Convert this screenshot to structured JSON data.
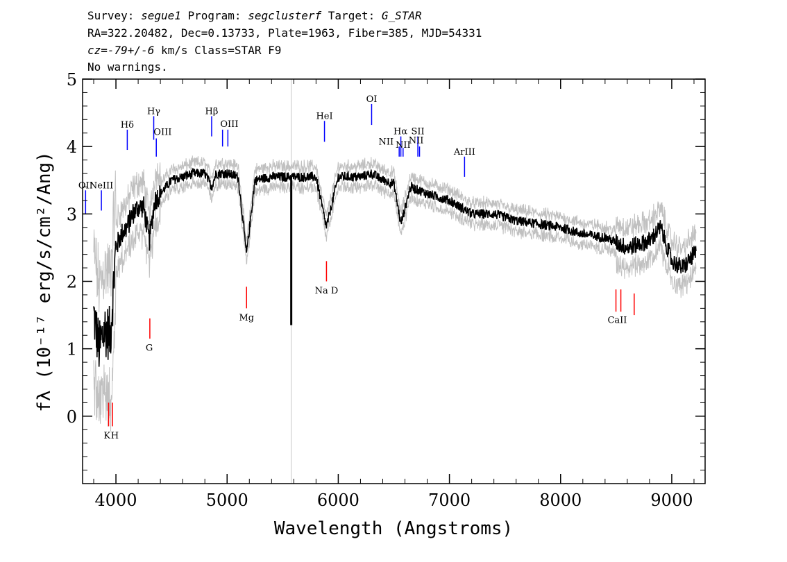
{
  "header": {
    "line1": {
      "prefix1": "Survey: ",
      "survey": "segue1",
      "prefix2": " Program: ",
      "program": "segclusterf",
      "prefix3": " Target: ",
      "target": "G_STAR"
    },
    "line2": "RA=322.20482, Dec=0.13733, Plate=1963, Fiber=385, MJD=54331",
    "line3": {
      "cz": "cz=-79+/-6",
      "rest": " km/s Class=STAR F9"
    },
    "line4": "No warnings."
  },
  "chart_data": {
    "type": "line",
    "xlabel": "Wavelength (Angstroms)",
    "ylabel": "fλ (10⁻¹⁷ erg/s/cm²/Ang)",
    "xlim": [
      3700,
      9300
    ],
    "ylim": [
      -1,
      5
    ],
    "x_ticks": [
      4000,
      5000,
      6000,
      7000,
      8000,
      9000
    ],
    "y_ticks": [
      0,
      1,
      2,
      3,
      4,
      5
    ],
    "x_minor_step": 200,
    "y_minor_step": 0.2,
    "sky_line_x": 5577,
    "flux_color": "#000000",
    "error_color": "#c0c0c0",
    "emission_color": "#0000ff",
    "absorption_color": "#ff0000",
    "continuum": [
      {
        "x": 3800,
        "y": 1.5
      },
      {
        "x": 3850,
        "y": 1.0
      },
      {
        "x": 3900,
        "y": 1.3
      },
      {
        "x": 3950,
        "y": 1.2
      },
      {
        "x": 4000,
        "y": 2.5
      },
      {
        "x": 4050,
        "y": 2.7
      },
      {
        "x": 4100,
        "y": 2.8
      },
      {
        "x": 4150,
        "y": 3.0
      },
      {
        "x": 4200,
        "y": 3.1
      },
      {
        "x": 4250,
        "y": 3.1
      },
      {
        "x": 4300,
        "y": 2.6
      },
      {
        "x": 4350,
        "y": 3.2
      },
      {
        "x": 4400,
        "y": 3.3
      },
      {
        "x": 4500,
        "y": 3.5
      },
      {
        "x": 4600,
        "y": 3.55
      },
      {
        "x": 4700,
        "y": 3.6
      },
      {
        "x": 4800,
        "y": 3.6
      },
      {
        "x": 4861,
        "y": 3.4
      },
      {
        "x": 4900,
        "y": 3.6
      },
      {
        "x": 5000,
        "y": 3.6
      },
      {
        "x": 5100,
        "y": 3.55
      },
      {
        "x": 5175,
        "y": 2.4
      },
      {
        "x": 5250,
        "y": 3.5
      },
      {
        "x": 5400,
        "y": 3.55
      },
      {
        "x": 5600,
        "y": 3.55
      },
      {
        "x": 5800,
        "y": 3.55
      },
      {
        "x": 5893,
        "y": 2.8
      },
      {
        "x": 6000,
        "y": 3.55
      },
      {
        "x": 6200,
        "y": 3.55
      },
      {
        "x": 6300,
        "y": 3.6
      },
      {
        "x": 6400,
        "y": 3.5
      },
      {
        "x": 6500,
        "y": 3.45
      },
      {
        "x": 6563,
        "y": 2.85
      },
      {
        "x": 6650,
        "y": 3.4
      },
      {
        "x": 6800,
        "y": 3.3
      },
      {
        "x": 7000,
        "y": 3.2
      },
      {
        "x": 7200,
        "y": 3.0
      },
      {
        "x": 7400,
        "y": 3.0
      },
      {
        "x": 7600,
        "y": 2.9
      },
      {
        "x": 7800,
        "y": 2.85
      },
      {
        "x": 8000,
        "y": 2.8
      },
      {
        "x": 8200,
        "y": 2.7
      },
      {
        "x": 8400,
        "y": 2.65
      },
      {
        "x": 8600,
        "y": 2.5
      },
      {
        "x": 8800,
        "y": 2.6
      },
      {
        "x": 8900,
        "y": 2.8
      },
      {
        "x": 9000,
        "y": 2.3
      },
      {
        "x": 9100,
        "y": 2.2
      },
      {
        "x": 9200,
        "y": 2.4
      }
    ],
    "emission_lines": [
      {
        "label": "OII",
        "x": 3727,
        "y0": 3.0,
        "y1": 3.35,
        "lx": 3727,
        "ly": 3.38
      },
      {
        "label": "NeIII",
        "x": 3869,
        "y0": 3.05,
        "y1": 3.35,
        "lx": 3869,
        "ly": 3.38
      },
      {
        "label": "Hδ",
        "x": 4102,
        "y0": 3.95,
        "y1": 4.25,
        "lx": 4102,
        "ly": 4.28
      },
      {
        "label": "Hγ",
        "x": 4340,
        "y0": 4.1,
        "y1": 4.45,
        "lx": 4340,
        "ly": 4.48
      },
      {
        "label": "OIII",
        "x": 4363,
        "y0": 3.85,
        "y1": 4.12,
        "lx": 4420,
        "ly": 4.17
      },
      {
        "label": "Hβ",
        "x": 4861,
        "y0": 4.15,
        "y1": 4.45,
        "lx": 4861,
        "ly": 4.48
      },
      {
        "label": "OIII",
        "x": 4959,
        "y0": 4.0,
        "y1": 4.25,
        "lx": 5020,
        "ly": 4.29
      },
      {
        "label": "",
        "x": 5007,
        "y0": 4.0,
        "y1": 4.25,
        "lx": 5007,
        "ly": 4.25
      },
      {
        "label": "HeI",
        "x": 5876,
        "y0": 4.07,
        "y1": 4.38,
        "lx": 5876,
        "ly": 4.41
      },
      {
        "label": "OI",
        "x": 6300,
        "y0": 4.32,
        "y1": 4.63,
        "lx": 6300,
        "ly": 4.66
      },
      {
        "label": "NII",
        "x": 6548,
        "y0": 3.85,
        "y1": 4.0,
        "lx": 6430,
        "ly": 4.03
      },
      {
        "label": "Hα",
        "x": 6563,
        "y0": 3.85,
        "y1": 4.15,
        "lx": 6560,
        "ly": 4.18
      },
      {
        "label": "NII",
        "x": 6583,
        "y0": 3.85,
        "y1": 3.98,
        "lx": 6583,
        "ly": 3.98
      },
      {
        "label": "SII",
        "x": 6716,
        "y0": 3.85,
        "y1": 4.15,
        "lx": 6716,
        "ly": 4.18
      },
      {
        "label": "NII",
        "x": 6731,
        "y0": 3.85,
        "y1": 4.0,
        "lx": 6700,
        "ly": 4.05
      },
      {
        "label": "ArIII",
        "x": 7136,
        "y0": 3.55,
        "y1": 3.85,
        "lx": 7136,
        "ly": 3.88
      }
    ],
    "absorption_lines": [
      {
        "label": "K",
        "x": 3934,
        "y0": -0.15,
        "y1": 0.2,
        "lx": 3920,
        "ly": -0.33
      },
      {
        "label": "H",
        "x": 3969,
        "y0": -0.15,
        "y1": 0.2,
        "lx": 3990,
        "ly": -0.33
      },
      {
        "label": "G",
        "x": 4305,
        "y0": 1.15,
        "y1": 1.45,
        "lx": 4300,
        "ly": 0.97
      },
      {
        "label": "Mg",
        "x": 5175,
        "y0": 1.6,
        "y1": 1.92,
        "lx": 5175,
        "ly": 1.42
      },
      {
        "label": "Na D",
        "x": 5894,
        "y0": 2.0,
        "y1": 2.3,
        "lx": 5894,
        "ly": 1.82
      },
      {
        "label": "CaII",
        "x": 8498,
        "y0": 1.55,
        "y1": 1.88,
        "lx": 8510,
        "ly": 1.38
      },
      {
        "label": "",
        "x": 8542,
        "y0": 1.55,
        "y1": 1.88,
        "lx": 8542,
        "ly": 1.38
      },
      {
        "label": "",
        "x": 8662,
        "y0": 1.5,
        "y1": 1.82,
        "lx": 8662,
        "ly": 1.38
      }
    ]
  }
}
